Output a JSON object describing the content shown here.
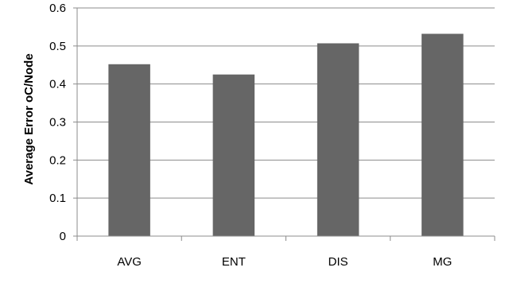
{
  "chart_data": {
    "type": "bar",
    "title": "",
    "xlabel": "",
    "ylabel": "Average  Error oC/Node",
    "categories": [
      "AVG",
      "ENT",
      "DIS",
      "MG"
    ],
    "values": [
      0.452,
      0.425,
      0.507,
      0.532
    ],
    "ylim": [
      0,
      0.6
    ],
    "yticks": [
      "0",
      "0.1",
      "0.2",
      "0.3",
      "0.4",
      "0.5",
      "0.6"
    ],
    "grid": true,
    "legend": "none",
    "colors": {
      "bar": "#666666",
      "grid": "#8c8c8c",
      "axis": "#8c8c8c"
    }
  }
}
